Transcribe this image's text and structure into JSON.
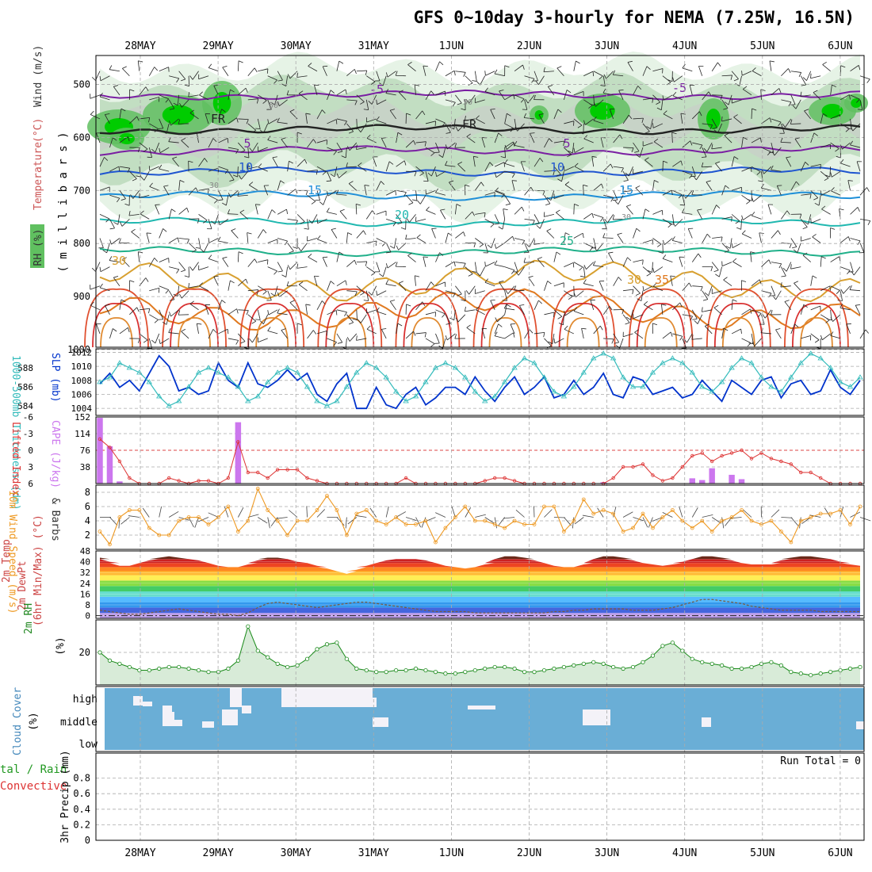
{
  "title": "GFS 0~10day 3-hourly for NEMA (7.25W, 16.5N)",
  "dates": [
    "28MAY",
    "29MAY",
    "30MAY",
    "31MAY",
    "1JUN",
    "2JUN",
    "3JUN",
    "4JUN",
    "5JUN",
    "6JUN"
  ],
  "colors": {
    "rh_light": "#e6f3e6",
    "rh_mid": "#b9d8b9",
    "rh_gray": "#c8cfc8",
    "rh_green": "#60c060",
    "rh_bright": "#00cc00",
    "slp": "#0033cc",
    "thickness": "#33bbbb",
    "lifted": "#dd3333",
    "cape": "#cc77ee",
    "wind": "#ee9922",
    "dewpt": "#888888",
    "rh2m": "#1a8a1a",
    "rh2m_fill": "#d8ebd8",
    "cloud": "#6aaed6",
    "grid": "#aaaaaa"
  },
  "chart_data": [
    {
      "panel": "upper-air",
      "type": "heatmap",
      "ylabel_left": "RH (%)",
      "ylabel_mid_parts": [
        {
          "text": "Temperature",
          "color": "#cc4444"
        },
        {
          "text": " (°C)",
          "color": "#cc4444"
        },
        {
          "text": "Wind (m/s)",
          "color": "#555555"
        }
      ],
      "ylabel_inner": "( m i l l i b a r s )",
      "y_ticks": [
        500,
        600,
        700,
        800,
        900,
        1000
      ],
      "ylim": [
        1000,
        450
      ],
      "isotherms": [
        {
          "label": "-5",
          "level": 520,
          "color": "#7a1fa2"
        },
        {
          "label": "FR",
          "level": 585,
          "color": "#222222"
        },
        {
          "label": "5",
          "level": 625,
          "color": "#7a1fa2"
        },
        {
          "label": "10",
          "level": 665,
          "color": "#1f55d0"
        },
        {
          "label": "15",
          "level": 710,
          "color": "#1f8fd8"
        },
        {
          "label": "20",
          "level": 760,
          "color": "#20b8b0"
        },
        {
          "label": "25",
          "level": 815,
          "color": "#20b08a"
        },
        {
          "label": "30",
          "level": 870,
          "color": "#d8a030"
        },
        {
          "label": "35",
          "level": 925,
          "color": "#e07a20"
        }
      ],
      "isotherm_labels": [
        "-5",
        "FR",
        "5",
        "10",
        "15",
        "20",
        "25",
        "30",
        "30",
        "35",
        "-5",
        "5",
        "10",
        "15",
        "FR"
      ],
      "rh_labels": [
        "50",
        "50",
        "30",
        "30"
      ]
    },
    {
      "panel": "slp-thickness",
      "type": "line",
      "ylabel_left": "1000-500mb Thickness (dm)",
      "ylabel_right": "SLP (mb)",
      "left_ticks": [
        584,
        586,
        588
      ],
      "right_ticks": [
        1004,
        1006,
        1008,
        1010,
        1012
      ],
      "series": [
        {
          "name": "SLP (mb)",
          "axis": "right",
          "values": [
            1007.5,
            1009,
            1007,
            1008,
            1006.5,
            1009,
            1011.5,
            1010,
            1006.5,
            1007,
            1006,
            1006.5,
            1010.5,
            1008,
            1007,
            1010.5,
            1007.5,
            1007,
            1008,
            1009.5,
            1008,
            1009,
            1006,
            1005,
            1007.5,
            1009,
            1004,
            1004,
            1007,
            1004.5,
            1004,
            1006,
            1007,
            1004.5,
            1005.5,
            1007,
            1007,
            1006,
            1008.5,
            1006.5,
            1005,
            1007,
            1008.5,
            1006,
            1007,
            1008.5,
            1005.5,
            1006,
            1008,
            1006,
            1007,
            1009,
            1006,
            1005.5,
            1008.5,
            1008,
            1006,
            1006.5,
            1007,
            1005.5,
            1006,
            1008,
            1006.5,
            1005,
            1008,
            1007,
            1006,
            1008,
            1008.5,
            1005.5,
            1007.5,
            1008,
            1006,
            1006.5,
            1009.5,
            1007,
            1006,
            1008
          ]
        },
        {
          "name": "1000-500mb Thickness (dm)",
          "axis": "left",
          "values": [
            586.5,
            587,
            588.5,
            588,
            587.5,
            586.5,
            585,
            584,
            584.5,
            586,
            587.5,
            588,
            587.5,
            587,
            586,
            584.5,
            585,
            586.5,
            587.5,
            588,
            587.5,
            586,
            584.5,
            584,
            584.5,
            586,
            587.5,
            588.5,
            588,
            587,
            585.5,
            584.5,
            585,
            586.5,
            588,
            588.5,
            588,
            587,
            585.5,
            584.5,
            585,
            586.5,
            588,
            589,
            588.5,
            587,
            585.5,
            585,
            586,
            587.5,
            589,
            589.5,
            589,
            587,
            586,
            586,
            587.5,
            588.5,
            589,
            588.5,
            587.5,
            586,
            585.5,
            586.5,
            588,
            589,
            588.5,
            587,
            586,
            585.5,
            587,
            588.5,
            589.5,
            589,
            588,
            586.5,
            586,
            587
          ]
        }
      ]
    },
    {
      "panel": "lifted-cape",
      "type": "bar",
      "ylabel_left": "Lifted Index",
      "ylabel_right": "CAPE (J/kg)",
      "left_ticks": [
        "-6",
        "-3",
        "0",
        "3",
        "6"
      ],
      "right_ticks": [
        38,
        76,
        114,
        152
      ],
      "cape_bars": [
        {
          "i": 0,
          "v": 150
        },
        {
          "i": 1,
          "v": 85
        },
        {
          "i": 2,
          "v": 5
        },
        {
          "i": 14,
          "v": 140
        },
        {
          "i": 51,
          "v": 3
        },
        {
          "i": 60,
          "v": 12
        },
        {
          "i": 61,
          "v": 8
        },
        {
          "i": 62,
          "v": 35
        },
        {
          "i": 64,
          "v": 20
        },
        {
          "i": 65,
          "v": 10
        }
      ],
      "series": [
        {
          "name": "Lifted Index",
          "values": [
            -2,
            -0.5,
            2,
            5,
            6,
            6,
            6,
            5,
            5.5,
            6,
            5.5,
            5.5,
            6,
            5,
            -1.5,
            4,
            4,
            5,
            3.5,
            3.5,
            3.5,
            5,
            5.5,
            6,
            6,
            6,
            6,
            6,
            6,
            6,
            6,
            5,
            6,
            6,
            6,
            6,
            6,
            6,
            6,
            5.5,
            5,
            5,
            5.5,
            6,
            6,
            6,
            6,
            6,
            6,
            6,
            6,
            6,
            5,
            3,
            3,
            2.5,
            4.5,
            5.5,
            5,
            3,
            1,
            0.5,
            2,
            1,
            0.5,
            0,
            1.5,
            0.5,
            1.5,
            2,
            2.5,
            4,
            4,
            5,
            6,
            6,
            6,
            6
          ]
        }
      ]
    },
    {
      "panel": "wind10m",
      "type": "line",
      "ylabel": [
        "10m Wind Speed (m/s)",
        "& Barbs"
      ],
      "y_ticks": [
        2,
        4,
        6,
        8
      ],
      "ylim": [
        0,
        9
      ],
      "series": [
        {
          "name": "10m Wind Speed",
          "values": [
            2.5,
            0.7,
            4.5,
            5.5,
            5.5,
            3,
            2,
            2,
            4,
            4.5,
            4.5,
            3.5,
            4.5,
            6,
            2.5,
            4,
            8.5,
            5.5,
            4,
            2,
            4,
            4,
            5.5,
            7.5,
            5.5,
            2,
            5,
            5.5,
            4,
            3.5,
            4.5,
            3.5,
            3.5,
            4,
            1,
            3,
            4.5,
            6,
            4,
            4,
            3.5,
            3,
            4,
            3.5,
            3.5,
            6,
            6,
            2.5,
            4,
            7,
            5,
            5.5,
            5,
            2.5,
            3,
            5,
            3,
            4.5,
            5.5,
            4,
            3,
            4,
            2.5,
            4,
            4.5,
            5.5,
            4,
            3.5,
            4,
            2.5,
            1,
            4,
            4.5,
            5,
            5,
            5.5,
            3.5,
            6
          ]
        }
      ]
    },
    {
      "panel": "temp2m",
      "type": "area",
      "ylabel": [
        "2m Temp",
        "2m DewPt",
        "(6hr Min/Max) (°C)"
      ],
      "y_ticks": [
        0,
        8,
        16,
        24,
        32,
        40,
        48
      ],
      "ylim": [
        -2,
        48
      ],
      "series": [
        {
          "name": "2m Temp Max",
          "values": [
            43,
            40,
            37,
            37,
            39,
            41,
            43,
            44,
            43,
            42,
            41,
            39,
            37,
            36,
            36,
            38,
            41,
            43,
            43,
            42,
            40,
            39,
            37,
            35,
            33,
            31,
            34,
            37,
            39,
            41,
            42,
            42,
            42,
            41,
            39,
            37,
            36,
            35,
            36,
            38,
            42,
            44,
            44,
            43,
            41,
            39,
            37,
            36,
            36,
            38,
            42,
            44,
            44,
            43,
            41,
            39,
            38,
            37,
            38,
            40,
            42,
            44,
            44,
            43,
            41,
            39,
            38,
            38,
            38,
            41,
            43,
            44,
            44,
            43,
            42,
            40,
            38,
            37
          ]
        },
        {
          "name": "2m DewPt",
          "values": [
            4,
            3,
            2,
            1,
            1,
            2,
            3,
            4,
            5,
            4,
            3,
            2,
            1,
            1,
            0,
            2,
            6,
            9,
            10,
            9,
            8,
            7,
            6,
            7,
            8,
            9,
            10,
            10,
            9,
            8,
            7,
            6,
            5,
            4,
            3,
            3,
            3,
            3,
            2,
            2,
            2,
            2,
            2,
            2,
            2,
            2,
            3,
            3,
            4,
            4,
            5,
            5,
            5,
            5,
            4,
            4,
            4,
            5,
            6,
            8,
            10,
            12,
            12,
            11,
            10,
            9,
            7,
            6,
            5,
            4,
            4,
            4,
            4,
            3,
            3,
            3,
            3,
            3
          ]
        }
      ]
    },
    {
      "panel": "rh2m",
      "type": "area",
      "ylabel": "2m RH",
      "unit": "(%)",
      "y_ticks": [
        20
      ],
      "ylim": [
        0,
        40
      ],
      "series": [
        {
          "name": "2m RH",
          "values": [
            20,
            15,
            13,
            11,
            9,
            9,
            10,
            11,
            11,
            10,
            9,
            8,
            8,
            10,
            15,
            36,
            21,
            17,
            13,
            11,
            12,
            16,
            22,
            25,
            26,
            16,
            10,
            9,
            8,
            8,
            9,
            9,
            10,
            9,
            8,
            7,
            7,
            8,
            9,
            10,
            11,
            11,
            10,
            8,
            8,
            9,
            10,
            11,
            12,
            13,
            14,
            13,
            11,
            10,
            11,
            14,
            18,
            24,
            26,
            21,
            16,
            14,
            13,
            12,
            10,
            10,
            11,
            13,
            14,
            12,
            8,
            7,
            6,
            7,
            8,
            9,
            10,
            11
          ]
        }
      ]
    },
    {
      "panel": "cloud",
      "type": "heatmap",
      "ylabel": [
        "Cloud Cover",
        "(%)"
      ],
      "levels": [
        "high",
        "middle",
        "low"
      ]
    },
    {
      "panel": "precip",
      "type": "bar",
      "ylabel_left": [
        "tal / Rain",
        "Convective"
      ],
      "ylabel": "3hr Precip (mm)",
      "y_ticks": [
        "0",
        "0.2",
        "0.4",
        "0.6",
        "0.8"
      ],
      "ylim": [
        0,
        1
      ],
      "run_total": "Run Total = 0",
      "series": []
    }
  ]
}
